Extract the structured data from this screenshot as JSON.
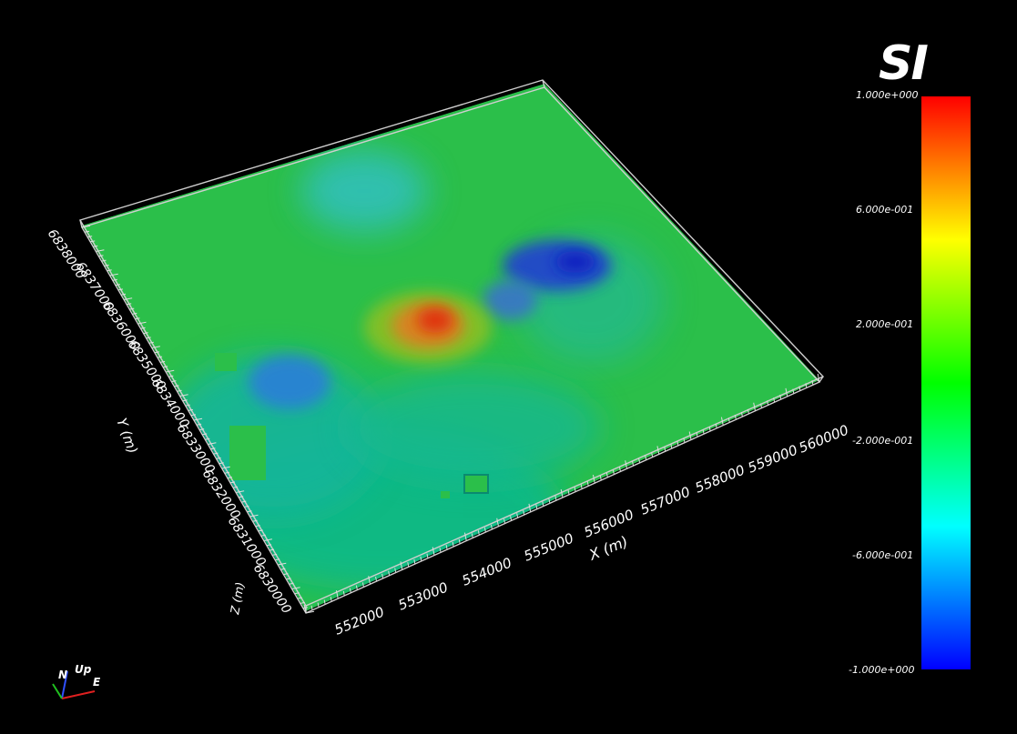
{
  "viewport": {
    "x_axis": {
      "title": "X (m)",
      "ticks": [
        "552000",
        "553000",
        "554000",
        "555000",
        "556000",
        "557000",
        "558000",
        "559000",
        "560000"
      ]
    },
    "y_axis": {
      "title": "Y (m)",
      "ticks": [
        "6838000",
        "6837000",
        "6836000",
        "6835000",
        "6834000",
        "6833000",
        "6832000",
        "6831000",
        "6830000"
      ]
    },
    "z_axis": {
      "title": "Z (m)"
    }
  },
  "colorbar": {
    "title": "SI",
    "labels": [
      "1.000e+000",
      "6.000e-001",
      "2.000e-001",
      "-2.000e-001",
      "-6.000e-001",
      "-1.000e+000"
    ],
    "colormap": [
      "#0000ff",
      "#00ffff",
      "#00ff00",
      "#ffff00",
      "#ff0000"
    ]
  },
  "orientation": {
    "north": "N",
    "up": "Up",
    "east": "E"
  },
  "colors": {
    "background": "#000000",
    "surface": "#22bb55",
    "outline": "#cccccc"
  }
}
